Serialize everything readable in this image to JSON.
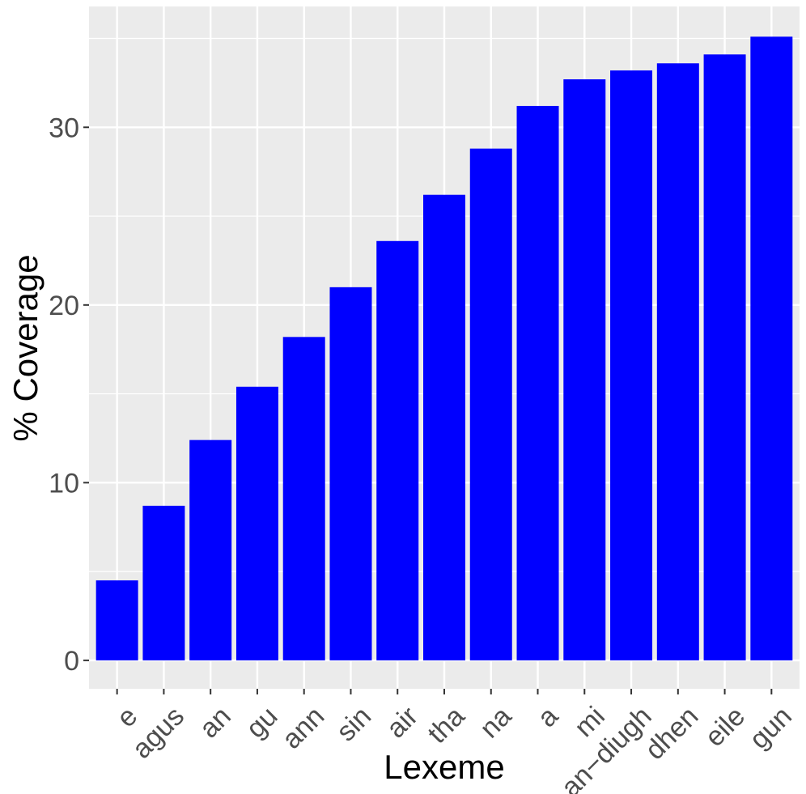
{
  "chart_data": {
    "type": "bar",
    "xlabel": "Lexeme",
    "ylabel": "% Coverage",
    "categories": [
      "e",
      "agus",
      "an",
      "gu",
      "ann",
      "sin",
      "air",
      "tha",
      "na",
      "a",
      "mi",
      "an−diugh",
      "dhen",
      "eile",
      "gun"
    ],
    "values": [
      4.5,
      8.7,
      12.4,
      15.4,
      18.2,
      21.0,
      23.6,
      26.2,
      28.8,
      31.2,
      32.7,
      33.2,
      33.6,
      34.1,
      35.1
    ],
    "ylim": [
      -1.6,
      36.8
    ],
    "yticks": [
      0,
      10,
      20,
      30
    ],
    "grid": true,
    "legend": "none",
    "colors": {
      "bar": "#0000ff",
      "panel": "#ebebeb",
      "grid": "#ffffff",
      "tick_text": "#4d4d4d",
      "tick_mark": "#333333"
    }
  }
}
